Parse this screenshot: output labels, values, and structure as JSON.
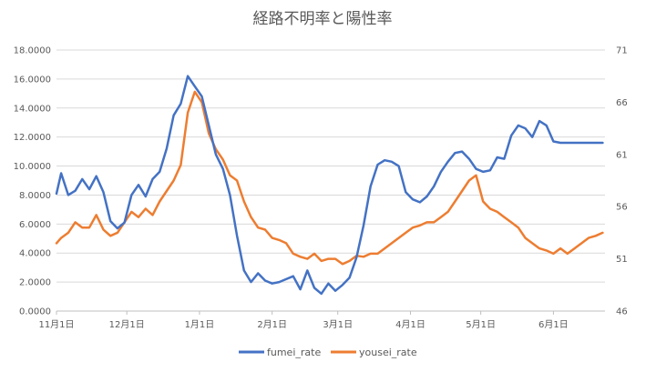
{
  "chart_data": {
    "type": "line",
    "title": "経路不明率と陽性率",
    "x_ticks": [
      "11月1日",
      "12月1日",
      "1月1日",
      "2月1日",
      "3月1日",
      "4月1日",
      "5月1日",
      "6月1日"
    ],
    "y_left": {
      "min": 0,
      "max": 18,
      "step": 2,
      "tick_labels": [
        "0.0000",
        "2.0000",
        "4.0000",
        "6.0000",
        "8.0000",
        "10.0000",
        "12.0000",
        "14.0000",
        "16.0000",
        "18.0000"
      ]
    },
    "y_right": {
      "min": 46,
      "max": 71,
      "step": 5,
      "tick_labels": [
        "46",
        "51",
        "56",
        "61",
        "66",
        "71"
      ]
    },
    "grid": true,
    "legend": "bottom",
    "series": [
      {
        "name": "fumei_rate",
        "axis": "left",
        "color": "#4472C4",
        "x": [
          "11/1",
          "11/3",
          "11/6",
          "11/9",
          "11/12",
          "11/15",
          "11/18",
          "11/21",
          "11/24",
          "11/27",
          "11/30",
          "12/3",
          "12/6",
          "12/9",
          "12/12",
          "12/15",
          "12/18",
          "12/21",
          "12/24",
          "12/27",
          "12/30",
          "1/2",
          "1/5",
          "1/8",
          "1/11",
          "1/14",
          "1/17",
          "1/20",
          "1/23",
          "1/26",
          "1/29",
          "2/1",
          "2/4",
          "2/7",
          "2/10",
          "2/13",
          "2/16",
          "2/19",
          "2/22",
          "2/25",
          "2/28",
          "3/3",
          "3/6",
          "3/9",
          "3/12",
          "3/15",
          "3/18",
          "3/21",
          "3/24",
          "3/27",
          "3/30",
          "4/2",
          "4/5",
          "4/8",
          "4/11",
          "4/14",
          "4/17",
          "4/20",
          "4/23",
          "4/26",
          "4/29",
          "5/2",
          "5/5",
          "5/8",
          "5/11",
          "5/14",
          "5/17",
          "5/20",
          "5/23",
          "5/26",
          "5/29",
          "6/1",
          "6/4",
          "6/7",
          "6/10",
          "6/13",
          "6/16",
          "6/19",
          "6/22"
        ],
        "values": [
          8.1,
          9.5,
          8.0,
          8.3,
          9.1,
          8.4,
          9.3,
          8.2,
          6.2,
          5.7,
          6.1,
          8.0,
          8.7,
          7.9,
          9.1,
          9.6,
          11.2,
          13.5,
          14.3,
          16.2,
          15.5,
          14.8,
          12.8,
          10.8,
          9.8,
          8.0,
          5.2,
          2.8,
          2.0,
          2.6,
          2.1,
          1.9,
          2.0,
          2.2,
          2.4,
          1.5,
          2.8,
          1.6,
          1.2,
          1.9,
          1.4,
          1.8,
          2.3,
          3.7,
          5.9,
          8.6,
          10.1,
          10.4,
          10.3,
          10.0,
          8.2,
          7.7,
          7.5,
          7.9,
          8.6,
          9.6,
          10.3,
          10.9,
          11.0,
          10.5,
          9.8,
          9.6,
          9.7,
          10.6,
          10.5,
          12.1,
          12.8,
          12.6,
          12.0,
          13.1,
          12.8,
          11.7,
          11.6,
          11.6,
          11.6,
          11.6,
          11.6,
          11.6,
          11.6
        ]
      },
      {
        "name": "yousei_rate",
        "axis": "right",
        "color": "#ED7D31",
        "x": [
          "11/1",
          "11/3",
          "11/6",
          "11/9",
          "11/12",
          "11/15",
          "11/18",
          "11/21",
          "11/24",
          "11/27",
          "11/30",
          "12/3",
          "12/6",
          "12/9",
          "12/12",
          "12/15",
          "12/18",
          "12/21",
          "12/24",
          "12/27",
          "12/30",
          "1/2",
          "1/5",
          "1/8",
          "1/11",
          "1/14",
          "1/17",
          "1/20",
          "1/23",
          "1/26",
          "1/29",
          "2/1",
          "2/4",
          "2/7",
          "2/10",
          "2/13",
          "2/16",
          "2/19",
          "2/22",
          "2/25",
          "2/28",
          "3/3",
          "3/6",
          "3/9",
          "3/12",
          "3/15",
          "3/18",
          "3/21",
          "3/24",
          "3/27",
          "3/30",
          "4/2",
          "4/5",
          "4/8",
          "4/11",
          "4/14",
          "4/17",
          "4/20",
          "4/23",
          "4/26",
          "4/29",
          "5/2",
          "5/5",
          "5/8",
          "5/11",
          "5/14",
          "5/17",
          "5/20",
          "5/23",
          "5/26",
          "5/29",
          "6/1",
          "6/4",
          "6/7",
          "6/10",
          "6/13",
          "6/16",
          "6/19",
          "6/22"
        ],
        "values": [
          52.5,
          53.0,
          53.5,
          54.5,
          54.0,
          54.0,
          55.2,
          53.8,
          53.2,
          53.5,
          54.5,
          55.5,
          55.0,
          55.8,
          55.2,
          56.5,
          57.5,
          58.5,
          60.0,
          65.0,
          67.0,
          66.0,
          63.0,
          61.5,
          60.5,
          59.0,
          58.5,
          56.5,
          55.0,
          54.0,
          53.8,
          53.0,
          52.8,
          52.5,
          51.5,
          51.2,
          51.0,
          51.5,
          50.8,
          51.0,
          51.0,
          50.5,
          50.8,
          51.3,
          51.2,
          51.5,
          51.5,
          52.0,
          52.5,
          53.0,
          53.5,
          54.0,
          54.2,
          54.5,
          54.5,
          55.0,
          55.5,
          56.5,
          57.5,
          58.5,
          59.0,
          56.5,
          55.8,
          55.5,
          55.0,
          54.5,
          54.0,
          53.0,
          52.5,
          52.0,
          51.8,
          51.5,
          52.0,
          51.5,
          52.0,
          52.5,
          53.0,
          53.2,
          53.5
        ]
      }
    ]
  }
}
